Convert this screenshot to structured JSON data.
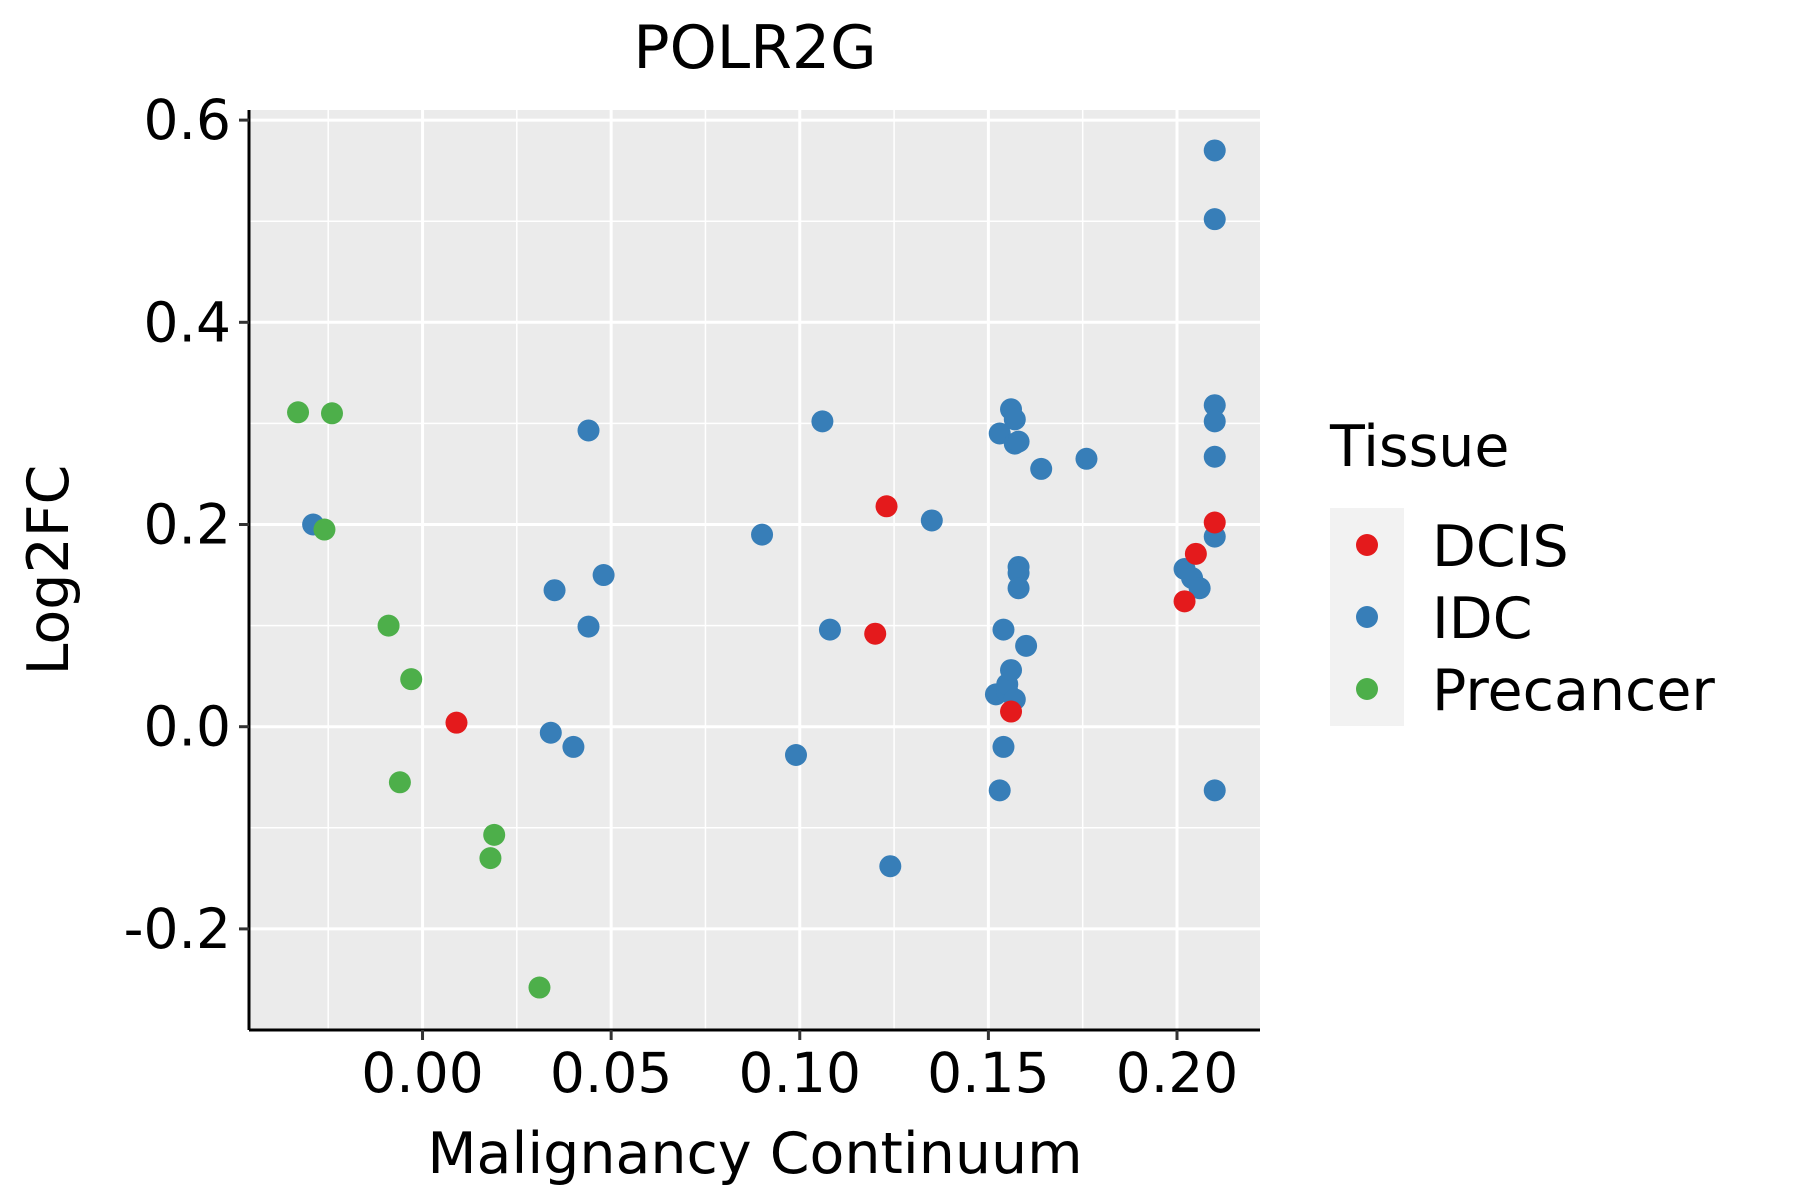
{
  "chart_data": {
    "type": "scatter",
    "title": "POLR2G",
    "xlabel": "Malignancy Continuum",
    "ylabel": "Log2FC",
    "xlim": [
      -0.046,
      0.222
    ],
    "ylim": [
      -0.3,
      0.61
    ],
    "x_ticks": [
      0.0,
      0.05,
      0.1,
      0.15,
      0.2
    ],
    "x_tick_labels": [
      "0.00",
      "0.05",
      "0.10",
      "0.15",
      "0.20"
    ],
    "y_ticks": [
      -0.2,
      0.0,
      0.2,
      0.4,
      0.6
    ],
    "y_tick_labels": [
      "-0.2",
      "0.0",
      "0.2",
      "0.4",
      "0.6"
    ],
    "grid": true,
    "legend": {
      "title": "Tissue",
      "position": "right",
      "entries": [
        "DCIS",
        "IDC",
        "Precancer"
      ]
    },
    "series": [
      {
        "name": "DCIS",
        "color": "#E41A1C",
        "points": [
          [
            0.009,
            0.004
          ],
          [
            0.12,
            0.092
          ],
          [
            0.123,
            0.218
          ],
          [
            0.156,
            0.015
          ],
          [
            0.202,
            0.124
          ],
          [
            0.205,
            0.171
          ],
          [
            0.21,
            0.202
          ]
        ]
      },
      {
        "name": "IDC",
        "color": "#377EB8",
        "points": [
          [
            -0.029,
            0.2
          ],
          [
            0.034,
            -0.006
          ],
          [
            0.035,
            0.135
          ],
          [
            0.04,
            -0.02
          ],
          [
            0.044,
            0.293
          ],
          [
            0.044,
            0.099
          ],
          [
            0.048,
            0.15
          ],
          [
            0.09,
            0.19
          ],
          [
            0.099,
            -0.028
          ],
          [
            0.106,
            0.302
          ],
          [
            0.108,
            0.096
          ],
          [
            0.124,
            -0.138
          ],
          [
            0.135,
            0.204
          ],
          [
            0.152,
            0.032
          ],
          [
            0.153,
            0.29
          ],
          [
            0.153,
            -0.063
          ],
          [
            0.154,
            -0.02
          ],
          [
            0.154,
            0.096
          ],
          [
            0.155,
            0.035
          ],
          [
            0.155,
            0.042
          ],
          [
            0.156,
            0.056
          ],
          [
            0.156,
            0.314
          ],
          [
            0.157,
            0.304
          ],
          [
            0.157,
            0.027
          ],
          [
            0.157,
            0.28
          ],
          [
            0.158,
            0.158
          ],
          [
            0.158,
            0.152
          ],
          [
            0.158,
            0.137
          ],
          [
            0.158,
            0.282
          ],
          [
            0.16,
            0.08
          ],
          [
            0.164,
            0.255
          ],
          [
            0.176,
            0.265
          ],
          [
            0.202,
            0.156
          ],
          [
            0.204,
            0.147
          ],
          [
            0.206,
            0.137
          ],
          [
            0.21,
            0.57
          ],
          [
            0.21,
            0.502
          ],
          [
            0.21,
            0.318
          ],
          [
            0.21,
            0.302
          ],
          [
            0.21,
            0.267
          ],
          [
            0.21,
            0.188
          ],
          [
            0.21,
            -0.063
          ]
        ]
      },
      {
        "name": "Precancer",
        "color": "#4DAF4A",
        "points": [
          [
            -0.033,
            0.311
          ],
          [
            -0.024,
            0.31
          ],
          [
            -0.026,
            0.195
          ],
          [
            -0.009,
            0.1
          ],
          [
            -0.003,
            0.047
          ],
          [
            -0.006,
            -0.055
          ],
          [
            0.019,
            -0.107
          ],
          [
            0.018,
            -0.13
          ],
          [
            0.031,
            -0.258
          ]
        ]
      }
    ]
  }
}
